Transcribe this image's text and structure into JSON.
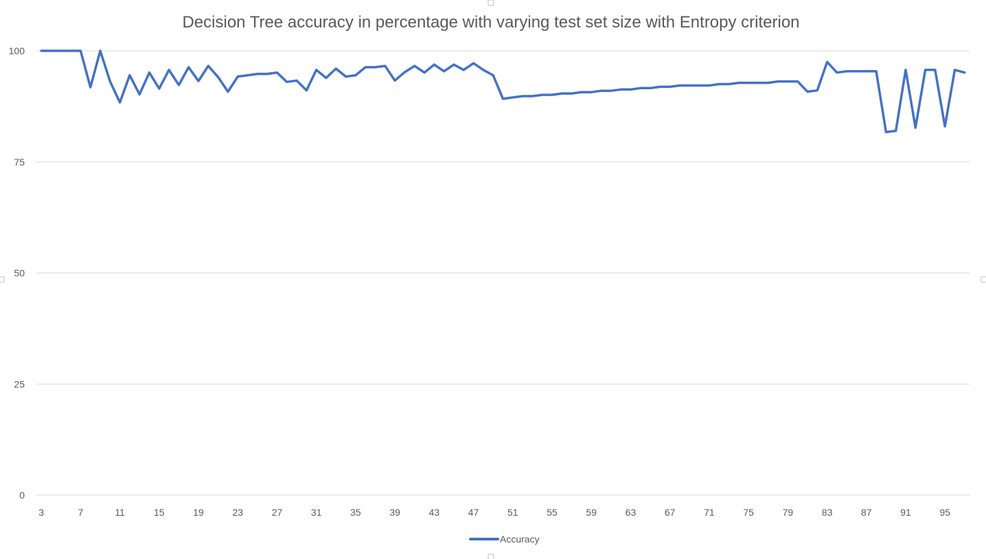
{
  "chart_data": {
    "type": "line",
    "title": "Decision Tree accuracy in percentage with varying test set size with Entropy criterion",
    "xlabel": "",
    "ylabel": "",
    "ylim": [
      0,
      100
    ],
    "y_ticks": [
      0,
      25,
      50,
      75,
      100
    ],
    "x": [
      3,
      4,
      5,
      6,
      7,
      8,
      9,
      10,
      11,
      12,
      13,
      14,
      15,
      16,
      17,
      18,
      19,
      20,
      21,
      22,
      23,
      24,
      25,
      26,
      27,
      28,
      29,
      30,
      31,
      32,
      33,
      34,
      35,
      36,
      37,
      38,
      39,
      40,
      41,
      42,
      43,
      44,
      45,
      46,
      47,
      48,
      49,
      50,
      51,
      52,
      53,
      54,
      55,
      56,
      57,
      58,
      59,
      60,
      61,
      62,
      63,
      64,
      65,
      66,
      67,
      68,
      69,
      70,
      71,
      72,
      73,
      74,
      75,
      76,
      77,
      78,
      79,
      80,
      81,
      82,
      83,
      84,
      85,
      86,
      87,
      88,
      89,
      90,
      91,
      92,
      93,
      94,
      95,
      96,
      97
    ],
    "x_tick_labels": [
      "3",
      "7",
      "11",
      "15",
      "19",
      "23",
      "27",
      "31",
      "35",
      "39",
      "43",
      "47",
      "51",
      "55",
      "59",
      "63",
      "67",
      "71",
      "75",
      "79",
      "83",
      "87",
      "91",
      "95"
    ],
    "grid": true,
    "legend_position": "bottom",
    "series": [
      {
        "name": "Accuracy",
        "color": "#4472c4",
        "values": [
          100,
          100,
          100,
          100,
          100,
          91.8,
          100,
          93.1,
          88.4,
          94.5,
          90.2,
          95.1,
          91.5,
          95.7,
          92.3,
          96.3,
          93.2,
          96.6,
          94.1,
          90.8,
          94.2,
          94.5,
          94.8,
          94.8,
          95.1,
          93,
          93.3,
          91.1,
          95.7,
          93.9,
          96,
          94.2,
          94.5,
          96.3,
          96.3,
          96.6,
          93.3,
          95.2,
          96.6,
          95.1,
          96.9,
          95.4,
          96.9,
          95.7,
          97.2,
          95.7,
          94.5,
          89.2,
          89.5,
          89.8,
          89.8,
          90.1,
          90.1,
          90.4,
          90.4,
          90.7,
          90.7,
          91,
          91,
          91.3,
          91.3,
          91.6,
          91.6,
          91.9,
          91.9,
          92.2,
          92.2,
          92.2,
          92.2,
          92.5,
          92.5,
          92.8,
          92.8,
          92.8,
          92.8,
          93.1,
          93.1,
          93.1,
          90.8,
          91.1,
          97.5,
          95.1,
          95.4,
          95.4,
          95.4,
          95.4,
          81.7,
          82,
          95.7,
          82.7,
          95.7,
          95.7,
          83,
          95.7,
          95.1
        ]
      }
    ]
  }
}
